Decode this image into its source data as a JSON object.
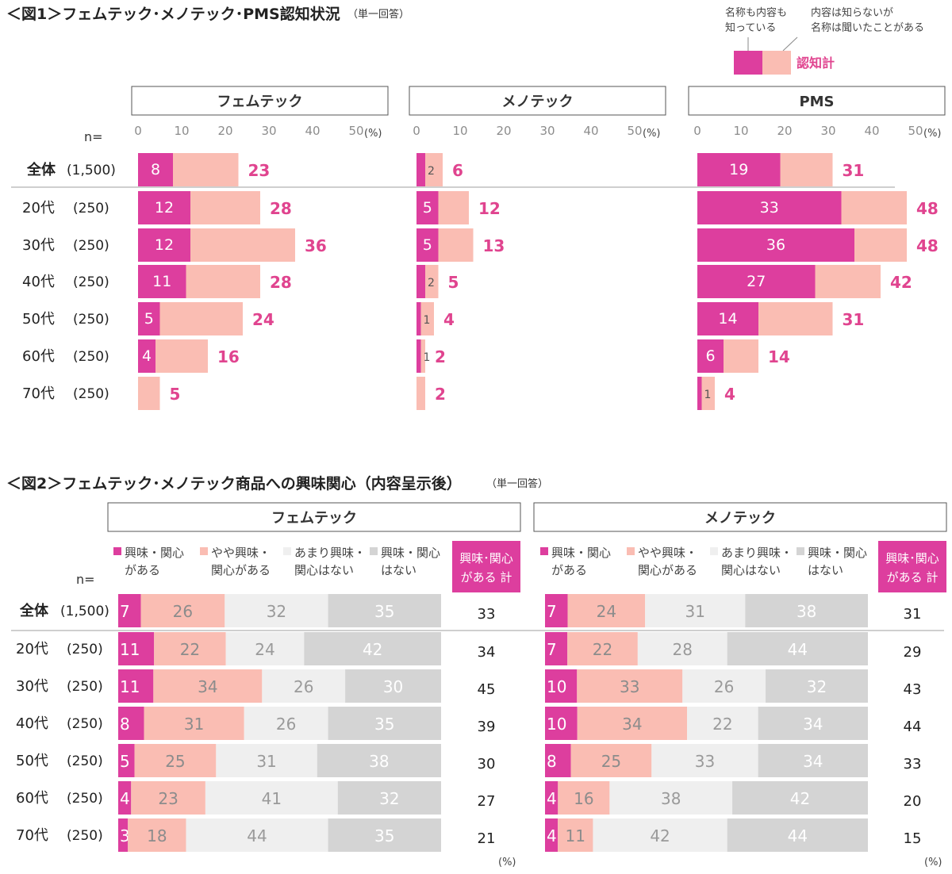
{
  "colors": {
    "deep": "#DD3E9E",
    "light": "#FABDB3",
    "gray_light": "#EFEFEF",
    "gray_dark": "#D4D4D4",
    "total_text": "#E0448F",
    "text": "#333333",
    "line": "#BFBFBF"
  },
  "fig1": {
    "title": "＜図1＞フェムテック･メノテック･PMS認知状況",
    "note": "（単一回答）",
    "legend": {
      "deep": "名称も内容も\n知っている",
      "light": "内容は知らないが\n名称は聞いたことがある",
      "total": "認知計"
    }
  },
  "fig2": {
    "title": "＜図2＞フェムテック･メノテック商品への興味関心（内容呈示後）",
    "note": "（単一回答）"
  },
  "n_label": "n=",
  "pct_unit": "(%)",
  "chart_data": [
    {
      "type": "bar",
      "stacked": true,
      "orientation": "horizontal",
      "figure": "fig1",
      "panels": [
        "フェムテック",
        "メノテック",
        "PMS"
      ],
      "categories": [
        {
          "label": "全体",
          "n": "(1,500)"
        },
        {
          "label": "20代",
          "n": "(250)"
        },
        {
          "label": "30代",
          "n": "(250)"
        },
        {
          "label": "40代",
          "n": "(250)"
        },
        {
          "label": "50代",
          "n": "(250)"
        },
        {
          "label": "60代",
          "n": "(250)"
        },
        {
          "label": "70代",
          "n": "(250)"
        }
      ],
      "xlim": [
        0,
        50
      ],
      "xticks": [
        0,
        10,
        20,
        30,
        40,
        50
      ],
      "series": [
        {
          "name": "名称も内容も知っている",
          "color": "#DD3E9E",
          "values": {
            "フェムテック": [
              8,
              12,
              12,
              11,
              5,
              4,
              0
            ],
            "メノテック": [
              2,
              5,
              5,
              2,
              1,
              1,
              0
            ],
            "PMS": [
              19,
              33,
              36,
              27,
              14,
              6,
              1
            ]
          }
        },
        {
          "name": "内容は知らないが名称は聞いたことがある",
          "color": "#FABDB3",
          "values": {
            "フェムテック": [
              15,
              16,
              24,
              17,
              19,
              12,
              5
            ],
            "メノテック": [
              4,
              7,
              8,
              3,
              3,
              1,
              2
            ],
            "PMS": [
              12,
              15,
              12,
              15,
              17,
              8,
              3
            ]
          }
        }
      ],
      "totals": {
        "フェムテック": [
          23,
          28,
          36,
          28,
          24,
          16,
          5
        ],
        "メノテック": [
          6,
          12,
          13,
          5,
          4,
          2,
          2
        ],
        "PMS": [
          31,
          48,
          48,
          42,
          31,
          14,
          4
        ]
      },
      "totals_label": "認知計"
    },
    {
      "type": "bar",
      "stacked": true,
      "orientation": "horizontal",
      "figure": "fig2",
      "panels": [
        "フェムテック",
        "メノテック"
      ],
      "categories": [
        {
          "label": "全体",
          "n": "(1,500)"
        },
        {
          "label": "20代",
          "n": "(250)"
        },
        {
          "label": "30代",
          "n": "(250)"
        },
        {
          "label": "40代",
          "n": "(250)"
        },
        {
          "label": "50代",
          "n": "(250)"
        },
        {
          "label": "60代",
          "n": "(250)"
        },
        {
          "label": "70代",
          "n": "(250)"
        }
      ],
      "xlim": [
        0,
        100
      ],
      "series": [
        {
          "name": "興味・関心\nがある",
          "color": "#DD3E9E",
          "values": {
            "フェムテック": [
              7,
              11,
              11,
              8,
              5,
              4,
              3
            ],
            "メノテック": [
              7,
              7,
              10,
              10,
              8,
              4,
              4
            ]
          }
        },
        {
          "name": "やや興味・\n関心がある",
          "color": "#FABDB3",
          "values": {
            "フェムテック": [
              26,
              22,
              34,
              31,
              25,
              23,
              18
            ],
            "メノテック": [
              24,
              22,
              33,
              34,
              25,
              16,
              11
            ]
          }
        },
        {
          "name": "あまり興味・\n関心はない",
          "color": "#EFEFEF",
          "values": {
            "フェムテック": [
              32,
              24,
              26,
              26,
              31,
              41,
              44
            ],
            "メノテック": [
              31,
              28,
              26,
              22,
              33,
              38,
              42
            ]
          }
        },
        {
          "name": "興味・関心\nはない",
          "color": "#D4D4D4",
          "values": {
            "フェムテック": [
              35,
              42,
              30,
              35,
              38,
              32,
              35
            ],
            "メノテック": [
              38,
              44,
              32,
              34,
              34,
              42,
              44
            ]
          }
        }
      ],
      "totals": {
        "フェムテック": [
          33,
          34,
          45,
          39,
          30,
          27,
          21
        ],
        "メノテック": [
          31,
          29,
          43,
          44,
          33,
          20,
          15
        ]
      },
      "totals_label": "興味･関心\nがある 計"
    }
  ]
}
